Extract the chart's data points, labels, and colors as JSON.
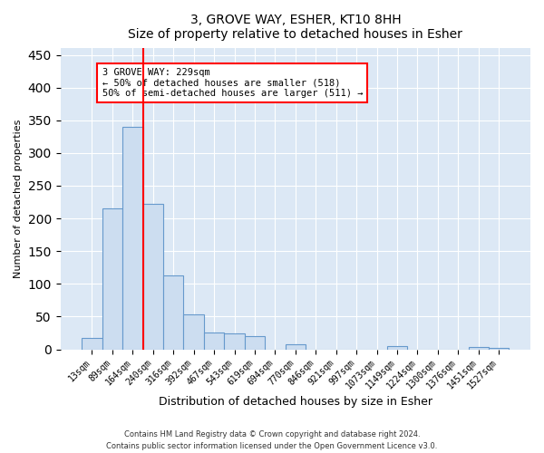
{
  "title": "3, GROVE WAY, ESHER, KT10 8HH",
  "subtitle": "Size of property relative to detached houses in Esher",
  "xlabel": "Distribution of detached houses by size in Esher",
  "ylabel": "Number of detached properties",
  "bar_labels": [
    "13sqm",
    "89sqm",
    "164sqm",
    "240sqm",
    "316sqm",
    "392sqm",
    "467sqm",
    "543sqm",
    "619sqm",
    "694sqm",
    "770sqm",
    "846sqm",
    "921sqm",
    "997sqm",
    "1073sqm",
    "1149sqm",
    "1224sqm",
    "1300sqm",
    "1376sqm",
    "1451sqm",
    "1527sqm"
  ],
  "bar_values": [
    17,
    215,
    340,
    222,
    113,
    53,
    26,
    24,
    20,
    0,
    8,
    0,
    0,
    0,
    0,
    5,
    0,
    0,
    0,
    3,
    2
  ],
  "bar_color": "#ccddf0",
  "bar_edge_color": "#6699cc",
  "vline_color": "red",
  "annotation_line1": "3 GROVE WAY: 229sqm",
  "annotation_line2": "← 50% of detached houses are smaller (518)",
  "annotation_line3": "50% of semi-detached houses are larger (511) →",
  "box_color": "white",
  "box_edge_color": "red",
  "ylim": [
    0,
    460
  ],
  "yticks": [
    0,
    50,
    100,
    150,
    200,
    250,
    300,
    350,
    400,
    450
  ],
  "footer1": "Contains HM Land Registry data © Crown copyright and database right 2024.",
  "footer2": "Contains public sector information licensed under the Open Government Licence v3.0.",
  "fig_background_color": "#ffffff",
  "plot_background_color": "#dce8f5"
}
